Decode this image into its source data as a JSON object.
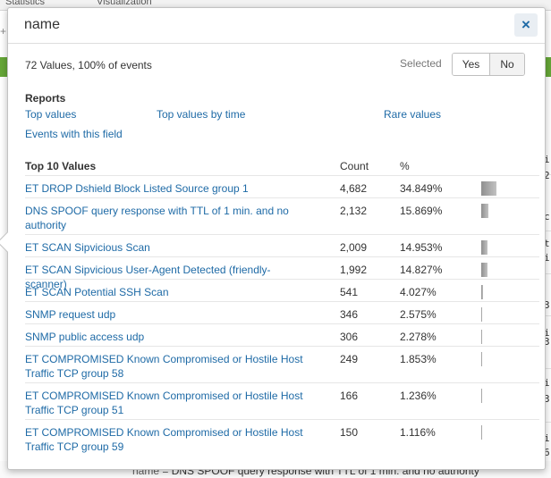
{
  "background": {
    "tabs": [
      "Statistics",
      "Visualization"
    ],
    "plus": "+",
    "right_cells": [
      "i",
      "2",
      "c",
      "t",
      "i",
      "3",
      "i",
      "3",
      "i",
      "3",
      "i",
      "6"
    ],
    "bottom_key": "name =",
    "bottom_value": "DNS SPOOF query response with TTL of 1 min. and no authority"
  },
  "popup": {
    "title": "name",
    "close_label": "×",
    "summary": "72 Values, 100% of events",
    "selected_label": "Selected",
    "yes_label": "Yes",
    "no_label": "No",
    "reports_heading": "Reports",
    "reports": {
      "top_values": "Top values",
      "top_values_by_time": "Top values by time",
      "rare_values": "Rare values",
      "events_with_field": "Events with this field"
    },
    "table": {
      "header_name": "Top 10 Values",
      "header_count": "Count",
      "header_pct": "%",
      "rows": [
        {
          "value": "ET DROP Dshield Block Listed Source group 1",
          "count": "4,682",
          "pct": "34.849%",
          "fraction": 0.34849
        },
        {
          "value": "DNS SPOOF query response with TTL of 1 min. and no authority",
          "count": "2,132",
          "pct": "15.869%",
          "fraction": 0.15869
        },
        {
          "value": "ET SCAN Sipvicious Scan",
          "count": "2,009",
          "pct": "14.953%",
          "fraction": 0.14953
        },
        {
          "value": "ET SCAN Sipvicious User-Agent Detected (friendly-scanner)",
          "count": "1,992",
          "pct": "14.827%",
          "fraction": 0.14827
        },
        {
          "value": "ET SCAN Potential SSH Scan",
          "count": "541",
          "pct": "4.027%",
          "fraction": 0.04027
        },
        {
          "value": "SNMP request udp",
          "count": "346",
          "pct": "2.575%",
          "fraction": 0.02575
        },
        {
          "value": "SNMP public access udp",
          "count": "306",
          "pct": "2.278%",
          "fraction": 0.02278
        },
        {
          "value": "ET COMPROMISED Known Compromised or Hostile Host Traffic TCP group 58",
          "count": "249",
          "pct": "1.853%",
          "fraction": 0.01853
        },
        {
          "value": "ET COMPROMISED Known Compromised or Hostile Host Traffic TCP group 51",
          "count": "166",
          "pct": "1.236%",
          "fraction": 0.01236
        },
        {
          "value": "ET COMPROMISED Known Compromised or Hostile Host Traffic TCP group 59",
          "count": "150",
          "pct": "1.116%",
          "fraction": 0.01116
        }
      ]
    }
  }
}
